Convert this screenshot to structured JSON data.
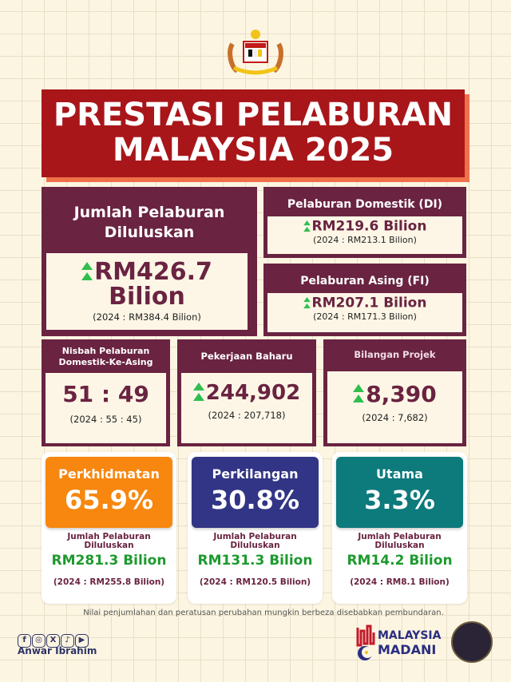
{
  "title": {
    "line1": "PRESTASI PELABURAN",
    "line2": "MALAYSIA 2025"
  },
  "total": {
    "label": "Jumlah Pelaburan Diluluskan",
    "value": "RM426.7",
    "unit": "Bilion",
    "prev": "(2024 : RM384.4 Bilion)"
  },
  "di": {
    "label": "Pelaburan Domestik (DI)",
    "value": "RM219.6 Bilion",
    "prev": "(2024 : RM213.1 Bilion)"
  },
  "fi": {
    "label": "Pelaburan Asing (FI)",
    "value": "RM207.1 Bilion",
    "prev": "(2024 : RM171.3 Bilion)"
  },
  "ratio": {
    "label": "Nisbah Pelaburan Domestik-Ke-Asing",
    "value": "51 : 49",
    "prev": "(2024 : 55 : 45)"
  },
  "jobs": {
    "label": "Pekerjaan Baharu",
    "value": "244,902",
    "prev": "(2024 : 207,718)"
  },
  "projects": {
    "label": "Bilangan Projek",
    "value": "8,390",
    "prev": "(2024 : 7,682)"
  },
  "sectors": [
    {
      "name": "Perkhidmatan",
      "pct": "65.9%",
      "sub": "Jumlah Pelaburan Diluluskan",
      "value": "RM281.3 Bilion",
      "prev": "(2024 : RM255.8 Bilion)",
      "color": "#f7870f"
    },
    {
      "name": "Perkilangan",
      "pct": "30.8%",
      "sub": "Jumlah Pelaburan Diluluskan",
      "value": "RM131.3 Bilion",
      "prev": "(2024 : RM120.5 Bilion)",
      "color": "#323585"
    },
    {
      "name": "Utama",
      "pct": "3.3%",
      "sub": "Jumlah Pelaburan Diluluskan",
      "value": "RM14.2 Bilion",
      "prev": "(2024 : RM8.1 Bilion)",
      "color": "#0d7a7c"
    }
  ],
  "note": "Nilai penjumlahan dan peratusan perubahan mungkin berbeza disebabkan pembundaran.",
  "footer": {
    "name": "Anwar Ibrahim",
    "social": [
      "facebook-icon",
      "instagram-icon",
      "x-icon",
      "tiktok-icon",
      "youtube-icon"
    ],
    "madani_1": "MALAYSIA",
    "madani_2": "MADANI"
  },
  "colors": {
    "plum": "#6a2341",
    "red": "#a8161a",
    "green": "#1d9a2e",
    "up_arrow": "#2fbf4f"
  }
}
